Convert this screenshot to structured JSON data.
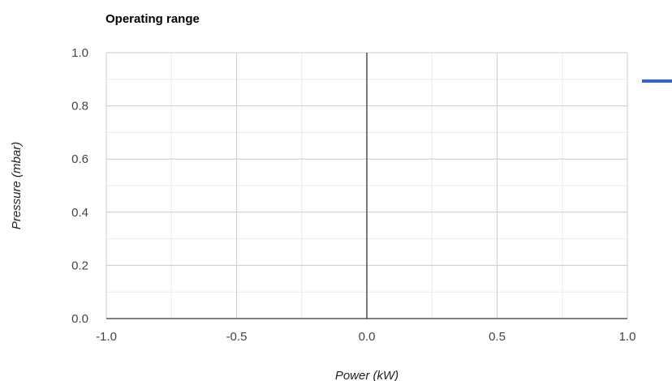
{
  "chart_data": {
    "type": "scatter",
    "title": "Operating range",
    "xlabel": "Power (kW)",
    "ylabel": "Pressure (mbar)",
    "xlim": [
      -1.0,
      1.0
    ],
    "ylim": [
      0.0,
      1.0
    ],
    "x_ticks": [
      "-1.0",
      "-0.5",
      "0.0",
      "0.5",
      "1.0"
    ],
    "y_ticks": [
      "0.0",
      "0.2",
      "0.4",
      "0.6",
      "0.8",
      "1.0"
    ],
    "x_tick_values": [
      -1.0,
      -0.5,
      0.0,
      0.5,
      1.0
    ],
    "y_tick_values": [
      0.0,
      0.2,
      0.4,
      0.6,
      0.8,
      1.0
    ],
    "grid": true,
    "minor_grid": true,
    "legend_position": "right",
    "series": [
      {
        "color": "#3366cc",
        "points": []
      }
    ],
    "colors": {
      "major_grid": "#cccccc",
      "minor_grid": "#ebebeb",
      "axis": "#333333",
      "zero_line": "#333333"
    }
  }
}
